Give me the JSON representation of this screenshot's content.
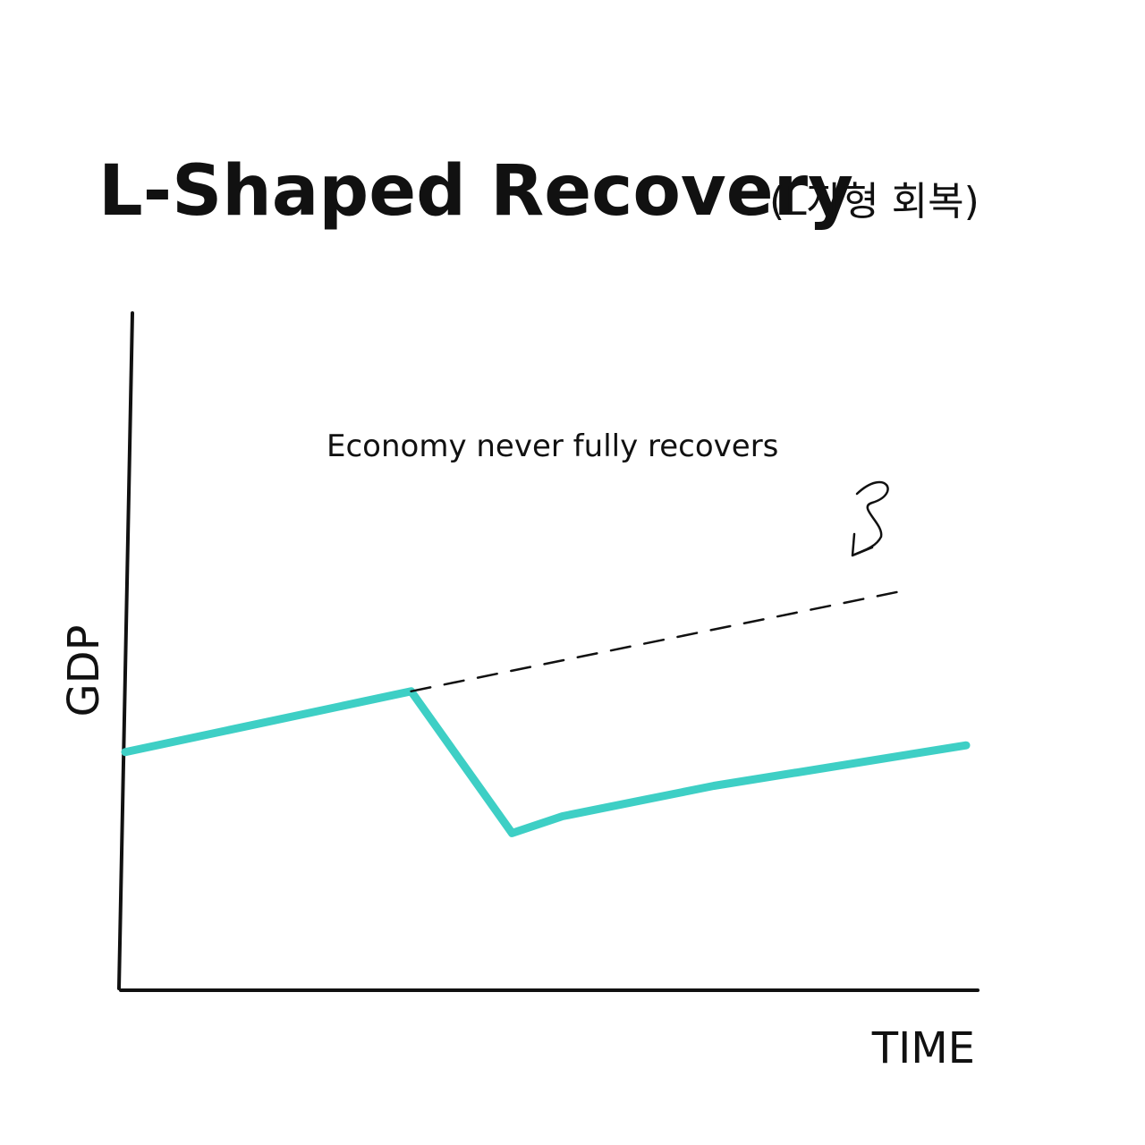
{
  "title": "L-Shaped Recovery",
  "subtitle": "(L자형 회복)",
  "annotation": "Economy never fully recovers",
  "colors": {
    "gdp_line": "#3ecfc5",
    "trend_line": "#111111",
    "ink": "#111111",
    "background": "#ffffff"
  },
  "chart_data": {
    "type": "line",
    "xlabel": "TIME",
    "ylabel": "GDP",
    "xlim": [
      0,
      10
    ],
    "ylim": [
      0,
      10
    ],
    "grid": false,
    "series": [
      {
        "values": [
          [
            0,
            3.5
          ],
          [
            3.4,
            4.4
          ],
          [
            4.6,
            2.3
          ],
          [
            5.2,
            2.55
          ],
          [
            7.0,
            3.0
          ],
          [
            10,
            3.6
          ]
        ]
      },
      {
        "values": [
          [
            3.4,
            4.4
          ],
          [
            9.3,
            5.9
          ]
        ],
        "style": "dashed"
      }
    ]
  }
}
